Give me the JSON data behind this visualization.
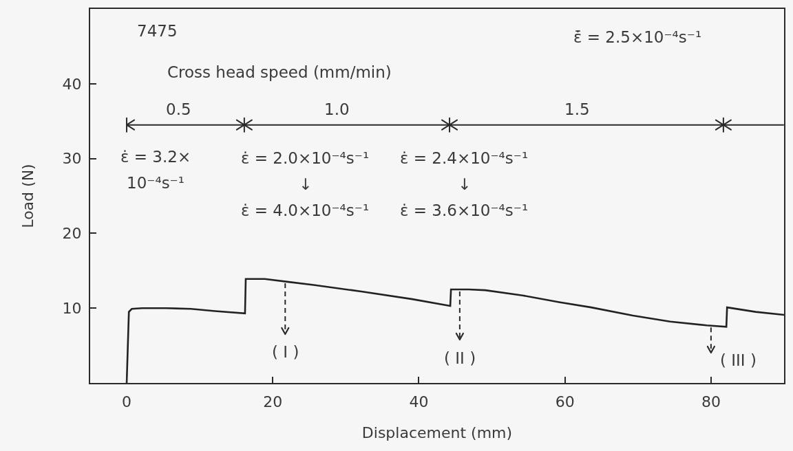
{
  "chart_data": {
    "type": "line",
    "xlabel": "Displacement (mm)",
    "ylabel": "Load (N)",
    "x": [
      0,
      0.3,
      0.7,
      2.1,
      5.4,
      8.8,
      12.1,
      16.2,
      16.3,
      18.9,
      22.2,
      25.6,
      32.3,
      39.1,
      44.3,
      44.4,
      46.8,
      49.1,
      54.2,
      59.2,
      63.6,
      69.3,
      74.4,
      79.4,
      82.1,
      82.2,
      86.1,
      90
    ],
    "values": [
      0,
      9.5,
      9.9,
      10.0,
      10.0,
      9.9,
      9.6,
      9.3,
      13.9,
      13.9,
      13.5,
      13.1,
      12.2,
      11.2,
      10.3,
      12.5,
      12.5,
      12.4,
      11.7,
      10.8,
      10.1,
      9.0,
      8.2,
      7.7,
      7.5,
      10.1,
      9.5,
      9.1
    ],
    "color": "#222222",
    "xlim": [
      -5,
      90
    ],
    "xticks": [
      0,
      20,
      40,
      60,
      80
    ],
    "ylim": [
      0,
      50
    ],
    "yticks": [
      10,
      20,
      30,
      40
    ],
    "annotations": [
      "7475",
      "ε̇̄ = 2.5×10⁻⁴s⁻¹",
      "Cross head speed (mm/min)",
      "0.5",
      "1.0",
      "1.5",
      "ε̇ = 3.2×\n10⁻⁴s⁻¹",
      "ε̇ = 2.0×10⁻⁴s⁻¹\n↓\nε̇ = 4.0×10⁻⁴s⁻¹",
      "ε̇ = 2.4×10⁻⁴s⁻¹\n↓\nε̇ = 3.6×10⁻⁴s⁻¹",
      {
        "text": "( I )",
        "x": 21.7,
        "y": 13.6
      },
      {
        "text": "( II )",
        "x": 45.6,
        "y": 12.5
      },
      {
        "text": "( III )",
        "x": 80.0,
        "y": 7.7
      }
    ]
  }
}
